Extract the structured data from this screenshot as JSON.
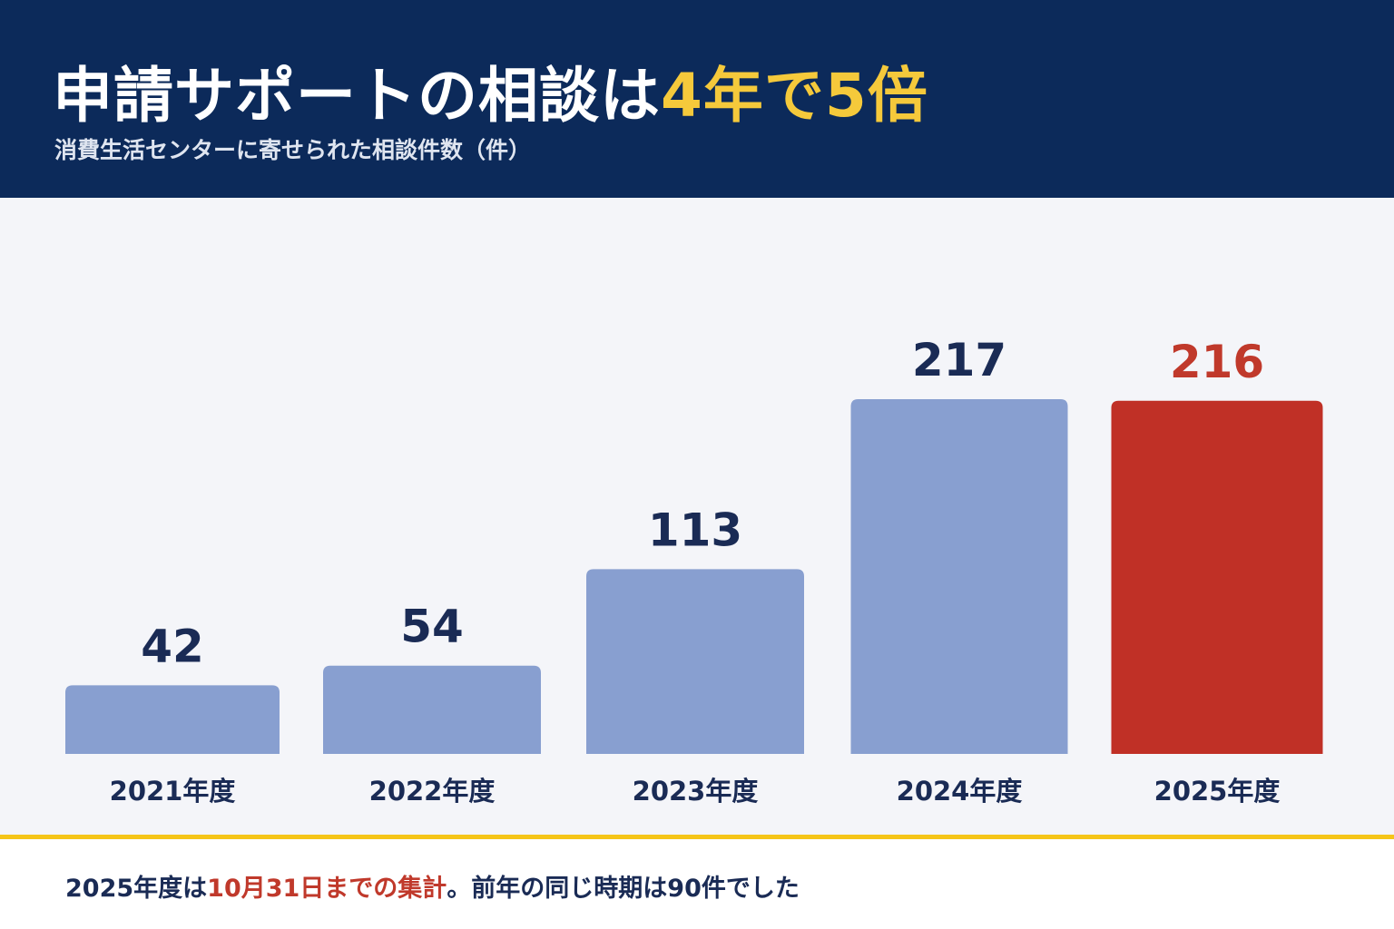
{
  "header": {
    "title_main": "申請サポートの相談は",
    "title_highlight": "4年で5倍",
    "subtitle": "消費生活センターに寄せられた相談件数（件）"
  },
  "colors": {
    "header_bg": "#0c2a5a",
    "highlight": "#f5c93b",
    "bar_default": "#889fd0",
    "bar_highlight": "#c03026",
    "value_label": "#1a2b55",
    "value_label_highlight": "#c0392b",
    "accent_line": "#f5c518"
  },
  "chart_data": {
    "type": "bar",
    "title": "申請サポートの相談は4年で5倍",
    "subtitle": "消費生活センターに寄せられた相談件数（件）",
    "categories": [
      "2021年度",
      "2022年度",
      "2023年度",
      "2024年度",
      "2025年度"
    ],
    "values": [
      42,
      54,
      113,
      217,
      216
    ],
    "highlight_index": 4,
    "xlabel": "",
    "ylabel": "",
    "ylim": [
      0,
      217
    ],
    "grid": false,
    "legend": "none"
  },
  "footer": {
    "note_part1": "2025年度は",
    "note_highlight": "10月31日までの集計",
    "note_part2": "。前年の同じ時期は90件でした"
  }
}
